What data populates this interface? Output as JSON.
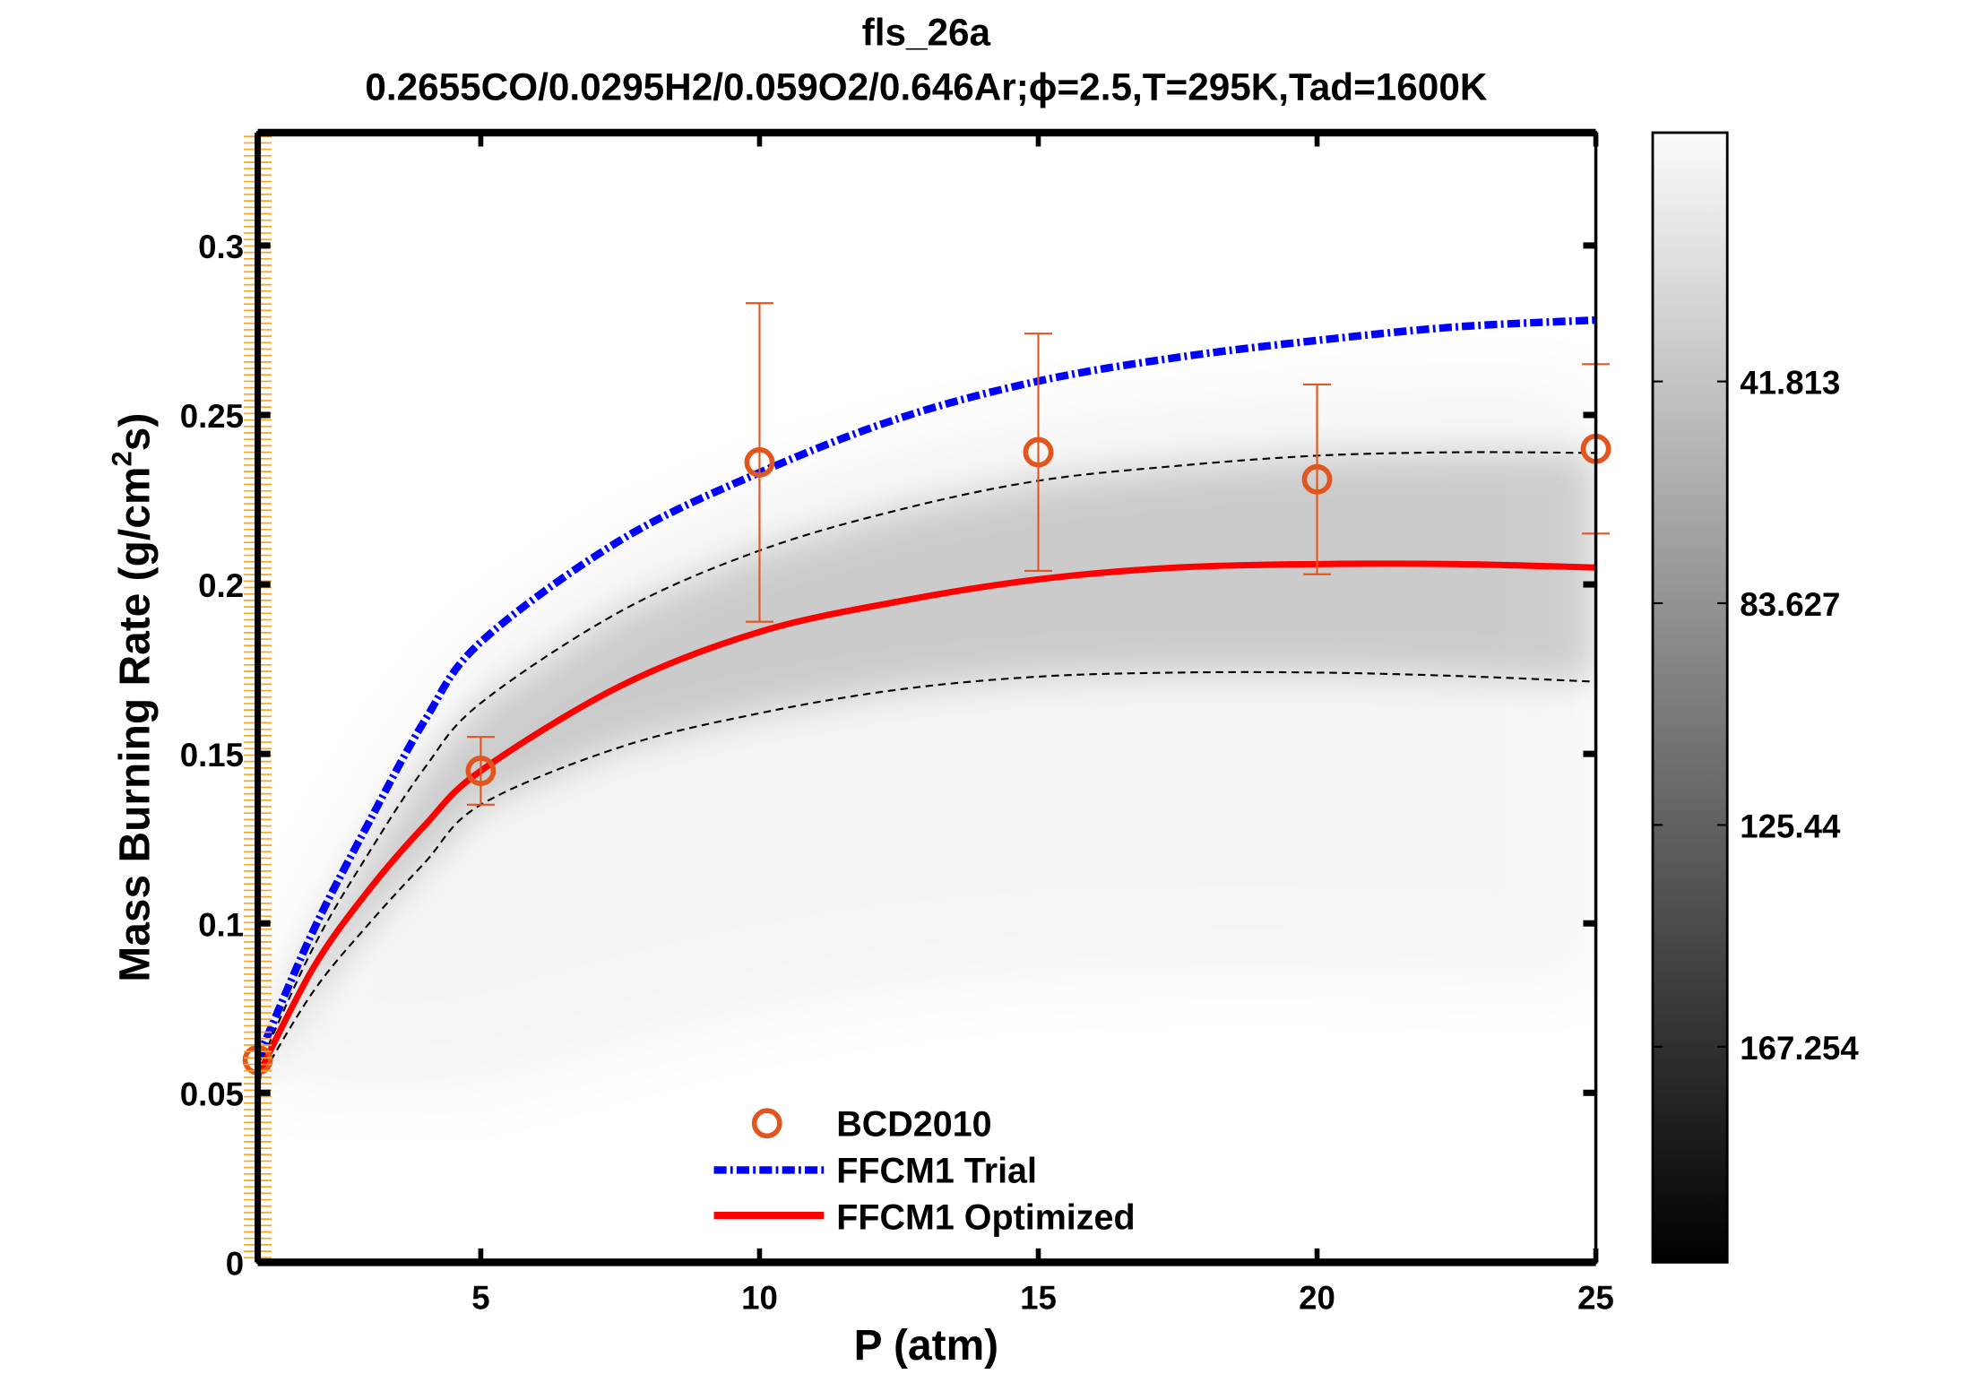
{
  "chart_data": {
    "type": "line",
    "title": "fls_26a",
    "subtitle": "0.2655CO/0.0295H2/0.059O2/0.646Ar;ϕ=2.5,T=295K,Tad=1600K",
    "xlabel": "P (atm)",
    "ylabel": "Mass Burning Rate (g/cm²s)",
    "ylabel_parts": {
      "main": "Mass Burning Rate (g/cm",
      "sup": "2",
      "end": "s)"
    },
    "xlim": [
      1,
      25
    ],
    "ylim": [
      0,
      0.3333
    ],
    "xticks": [
      5,
      10,
      15,
      20,
      25
    ],
    "xtick_labels": [
      "5",
      "10",
      "15",
      "20",
      "25"
    ],
    "yticks": [
      0,
      0.05,
      0.1,
      0.15,
      0.2,
      0.25,
      0.3
    ],
    "ytick_labels": [
      "0",
      "0.05",
      "0.1",
      "0.15",
      "0.2",
      "0.25",
      "0.3"
    ],
    "grid": false,
    "legend_position": "bottom-center",
    "x": [
      1,
      2,
      3,
      4,
      5,
      7.5,
      10,
      12.5,
      15,
      17.5,
      20,
      22.5,
      25
    ],
    "series": [
      {
        "name": "BCD2010",
        "kind": "scatter-errorbar",
        "color": "#e0561e",
        "points": [
          {
            "x": 1,
            "y": 0.0597,
            "lo": 0.0597,
            "hi": 0.0597
          },
          {
            "x": 5,
            "y": 0.145,
            "lo": 0.135,
            "hi": 0.155
          },
          {
            "x": 10,
            "y": 0.236,
            "lo": 0.189,
            "hi": 0.283
          },
          {
            "x": 15,
            "y": 0.239,
            "lo": 0.204,
            "hi": 0.274
          },
          {
            "x": 20,
            "y": 0.231,
            "lo": 0.203,
            "hi": 0.259
          },
          {
            "x": 25,
            "y": 0.24,
            "lo": 0.215,
            "hi": 0.265
          }
        ]
      },
      {
        "name": "FFCM1 Trial",
        "kind": "dash-dot",
        "color": "#0000ff",
        "values": [
          0.06,
          0.098,
          0.13,
          0.16,
          0.183,
          0.213,
          0.233,
          0.249,
          0.26,
          0.267,
          0.272,
          0.276,
          0.278
        ]
      },
      {
        "name": "FFCM1 Optimized",
        "kind": "solid",
        "color": "#ff0000",
        "values": [
          0.055,
          0.087,
          0.11,
          0.129,
          0.145,
          0.17,
          0.186,
          0.195,
          0.2015,
          0.205,
          0.206,
          0.206,
          0.205
        ]
      },
      {
        "kind": "dashed-upper-bound",
        "color": "#000000",
        "values": [
          0.057,
          0.093,
          0.121,
          0.146,
          0.165,
          0.192,
          0.21,
          0.222,
          0.2306,
          0.235,
          0.238,
          0.239,
          0.2388
        ]
      },
      {
        "kind": "dashed-lower-bound",
        "color": "#000000",
        "values": [
          0.053,
          0.08,
          0.1,
          0.118,
          0.135,
          0.152,
          0.162,
          0.169,
          0.1728,
          0.174,
          0.174,
          0.173,
          0.1713
        ]
      }
    ],
    "colorbar": {
      "colormap": "gray (reversed: white at top, black at bottom)",
      "range": [
        -5.1,
        207.9
      ],
      "ticks": [
        41.813,
        83.627,
        125.44,
        167.254
      ],
      "tick_labels": [
        "41.813",
        "83.627",
        "125.44",
        "167.254"
      ]
    }
  }
}
